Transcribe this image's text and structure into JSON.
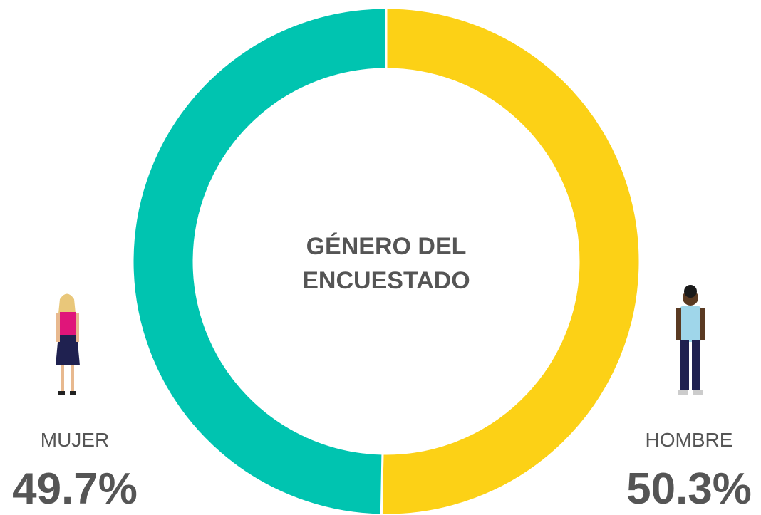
{
  "chart_data": {
    "type": "donut",
    "title": "GÉNERO DEL ENCUESTADO",
    "categories": [
      "MUJER",
      "HOMBRE"
    ],
    "values": [
      49.7,
      50.3
    ],
    "value_labels": [
      "49.7%",
      "50.3%"
    ],
    "colors": [
      "#00c4b0",
      "#fcd116"
    ]
  }
}
